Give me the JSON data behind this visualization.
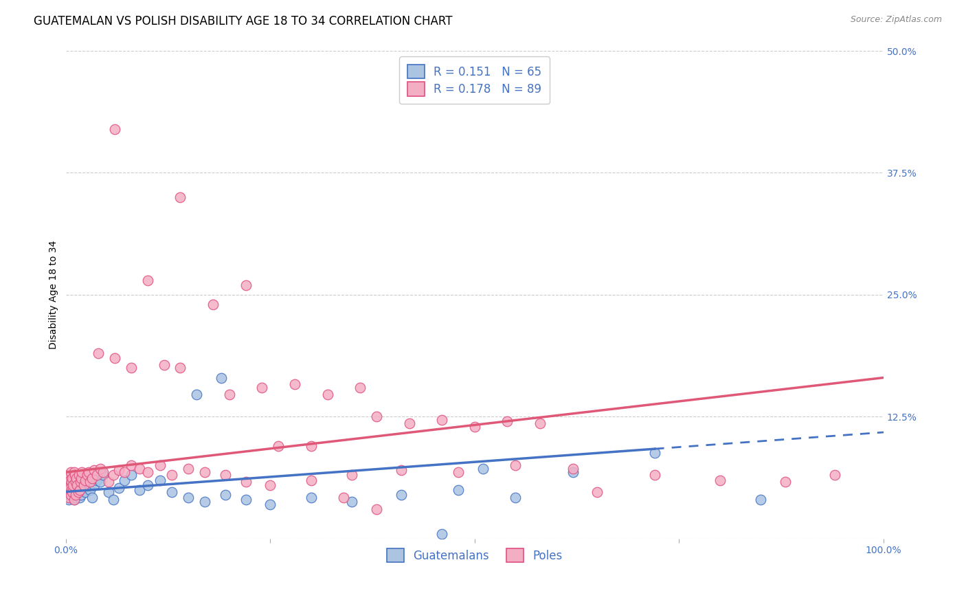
{
  "title": "GUATEMALAN VS POLISH DISABILITY AGE 18 TO 34 CORRELATION CHART",
  "source": "Source: ZipAtlas.com",
  "ylabel": "Disability Age 18 to 34",
  "xlim": [
    0.0,
    1.0
  ],
  "ylim": [
    0.0,
    0.5
  ],
  "x_ticks": [
    0.0,
    0.25,
    0.5,
    0.75,
    1.0
  ],
  "x_tick_labels": [
    "0.0%",
    "",
    "",
    "",
    "100.0%"
  ],
  "y_ticks": [
    0.0,
    0.125,
    0.25,
    0.375,
    0.5
  ],
  "y_tick_labels_right": [
    "",
    "12.5%",
    "25.0%",
    "37.5%",
    "50.0%"
  ],
  "guatemalan_face": "#aac4e2",
  "guatemalan_edge": "#4472c4",
  "polish_face": "#f4aec4",
  "polish_edge": "#e05080",
  "trend_blue": "#4472c4",
  "trend_pink": "#e05878",
  "background": "#ffffff",
  "grid_color": "#cccccc",
  "tick_color": "#4472c4",
  "title_fontsize": 12,
  "source_fontsize": 9,
  "tick_fontsize": 10,
  "ylabel_fontsize": 10,
  "legend_fontsize": 12,
  "R_g": 0.151,
  "N_g": 65,
  "R_p": 0.178,
  "N_p": 89,
  "trend_blue_x0": 0.0,
  "trend_blue_y0": 0.048,
  "trend_blue_x1": 0.72,
  "trend_blue_y1": 0.092,
  "trend_blue_dash_x0": 0.72,
  "trend_blue_dash_y0": 0.092,
  "trend_blue_dash_x1": 1.0,
  "trend_blue_dash_y1": 0.109,
  "trend_pink_x0": 0.0,
  "trend_pink_y0": 0.068,
  "trend_pink_x1": 1.0,
  "trend_pink_y1": 0.165,
  "gx": [
    0.001,
    0.002,
    0.002,
    0.003,
    0.003,
    0.004,
    0.004,
    0.005,
    0.005,
    0.006,
    0.006,
    0.007,
    0.007,
    0.008,
    0.008,
    0.009,
    0.01,
    0.01,
    0.011,
    0.012,
    0.012,
    0.013,
    0.014,
    0.015,
    0.016,
    0.017,
    0.018,
    0.019,
    0.02,
    0.022,
    0.024,
    0.026,
    0.028,
    0.03,
    0.032,
    0.035,
    0.038,
    0.042,
    0.046,
    0.052,
    0.058,
    0.065,
    0.072,
    0.08,
    0.09,
    0.1,
    0.115,
    0.13,
    0.15,
    0.17,
    0.195,
    0.22,
    0.25,
    0.3,
    0.35,
    0.41,
    0.48,
    0.55,
    0.62,
    0.72,
    0.46,
    0.51,
    0.85,
    0.16,
    0.19
  ],
  "gy": [
    0.055,
    0.052,
    0.048,
    0.06,
    0.045,
    0.058,
    0.04,
    0.062,
    0.05,
    0.055,
    0.042,
    0.058,
    0.045,
    0.06,
    0.048,
    0.052,
    0.065,
    0.04,
    0.058,
    0.055,
    0.042,
    0.05,
    0.06,
    0.048,
    0.055,
    0.042,
    0.058,
    0.045,
    0.06,
    0.052,
    0.048,
    0.058,
    0.062,
    0.05,
    0.042,
    0.055,
    0.06,
    0.058,
    0.065,
    0.048,
    0.04,
    0.052,
    0.06,
    0.065,
    0.05,
    0.055,
    0.06,
    0.048,
    0.042,
    0.038,
    0.045,
    0.04,
    0.035,
    0.042,
    0.038,
    0.045,
    0.05,
    0.042,
    0.068,
    0.088,
    0.005,
    0.072,
    0.04,
    0.148,
    0.165
  ],
  "px": [
    0.001,
    0.002,
    0.002,
    0.003,
    0.003,
    0.004,
    0.004,
    0.005,
    0.005,
    0.006,
    0.006,
    0.007,
    0.007,
    0.008,
    0.008,
    0.009,
    0.01,
    0.01,
    0.011,
    0.012,
    0.012,
    0.013,
    0.014,
    0.015,
    0.016,
    0.017,
    0.018,
    0.019,
    0.02,
    0.022,
    0.024,
    0.026,
    0.028,
    0.03,
    0.032,
    0.035,
    0.038,
    0.042,
    0.046,
    0.052,
    0.058,
    0.065,
    0.072,
    0.08,
    0.09,
    0.1,
    0.115,
    0.13,
    0.15,
    0.17,
    0.195,
    0.22,
    0.25,
    0.3,
    0.35,
    0.41,
    0.48,
    0.55,
    0.62,
    0.72,
    0.8,
    0.88,
    0.94,
    0.38,
    0.42,
    0.46,
    0.5,
    0.54,
    0.58,
    0.65,
    0.2,
    0.24,
    0.28,
    0.32,
    0.36,
    0.04,
    0.06,
    0.08,
    0.12,
    0.14,
    0.06,
    0.1,
    0.14,
    0.18,
    0.22,
    0.26,
    0.3,
    0.34,
    0.38
  ],
  "py": [
    0.06,
    0.055,
    0.062,
    0.048,
    0.058,
    0.065,
    0.042,
    0.06,
    0.052,
    0.068,
    0.045,
    0.058,
    0.05,
    0.062,
    0.048,
    0.055,
    0.068,
    0.04,
    0.065,
    0.058,
    0.045,
    0.062,
    0.055,
    0.048,
    0.065,
    0.05,
    0.058,
    0.062,
    0.068,
    0.055,
    0.06,
    0.065,
    0.068,
    0.058,
    0.062,
    0.07,
    0.065,
    0.072,
    0.068,
    0.058,
    0.065,
    0.07,
    0.068,
    0.075,
    0.072,
    0.068,
    0.075,
    0.065,
    0.072,
    0.068,
    0.065,
    0.058,
    0.055,
    0.06,
    0.065,
    0.07,
    0.068,
    0.075,
    0.072,
    0.065,
    0.06,
    0.058,
    0.065,
    0.125,
    0.118,
    0.122,
    0.115,
    0.12,
    0.118,
    0.048,
    0.148,
    0.155,
    0.158,
    0.148,
    0.155,
    0.19,
    0.185,
    0.175,
    0.178,
    0.175,
    0.42,
    0.265,
    0.35,
    0.24,
    0.26,
    0.095,
    0.095,
    0.042,
    0.03
  ]
}
